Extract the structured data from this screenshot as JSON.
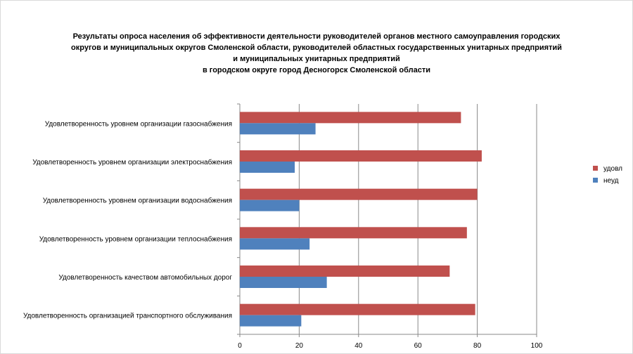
{
  "chart_data": {
    "type": "bar",
    "orientation": "horizontal",
    "title": "Результаты опроса населения об эффективности деятельности руководителей органов местного самоуправления городских\nокругов и муниципальных округов Смоленской области, руководителей областных государственных унитарных предприятий\nи муниципальных унитарных предприятий\nв городском округе город Десногорск Смоленской области",
    "categories": [
      "Удовлетворенность уровнем организации газоснабжения",
      "Удовлетворенность уровнем организации электроснабжения",
      "Удовлетворенность уровнем организации водоснабжения",
      "Удовлетворенность уровнем организации теплоснабжения",
      "Удовлетворенность качеством автомобильных дорог",
      "Удовлетворенность организацией транспортного обслуживания"
    ],
    "series": [
      {
        "name": "удовл",
        "color": "#c0504d",
        "values": [
          74.5,
          81.5,
          80,
          76.5,
          70.7,
          79.3
        ]
      },
      {
        "name": "неуд",
        "color": "#4f81bd",
        "values": [
          25.5,
          18.5,
          20,
          23.5,
          29.3,
          20.7
        ]
      }
    ],
    "xlim": [
      0,
      100
    ],
    "xticks": [
      0,
      20,
      40,
      60,
      80,
      100
    ],
    "grid": true,
    "legend_position": "right"
  }
}
